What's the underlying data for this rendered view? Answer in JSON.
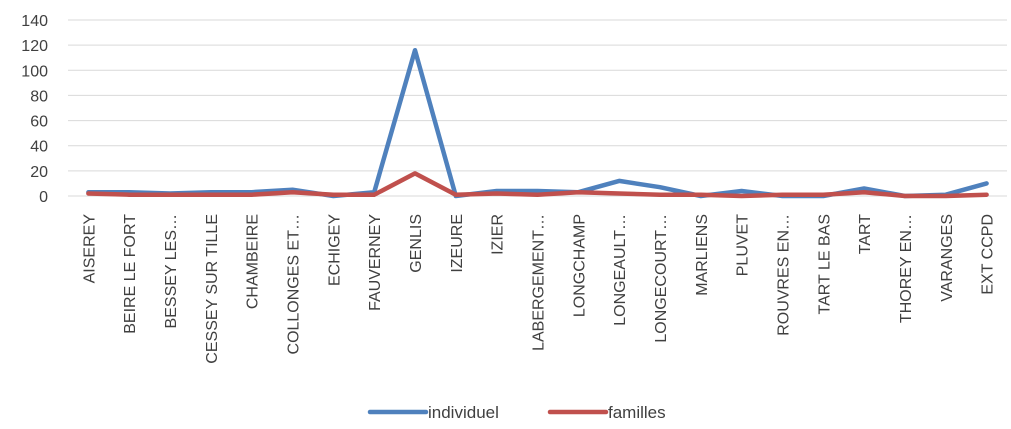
{
  "chart_data": {
    "type": "line",
    "title": "",
    "xlabel": "",
    "ylabel": "",
    "ylim": [
      0,
      140
    ],
    "yticks": [
      0,
      20,
      40,
      60,
      80,
      100,
      120,
      140
    ],
    "grid": true,
    "legend_position": "bottom",
    "categories": [
      "AISEREY",
      "BEIRE LE FORT",
      "BESSEY LES…",
      "CESSEY SUR TILLE",
      "CHAMBEIRE",
      "COLLONGES ET…",
      "ECHIGEY",
      "FAUVERNEY",
      "GENLIS",
      "IZEURE",
      "IZIER",
      "LABERGEMENT…",
      "LONGCHAMP",
      "LONGEAULT…",
      "LONGECOURT…",
      "MARLIENS",
      "PLUVET",
      "ROUVRES EN…",
      "TART LE BAS",
      "TART",
      "THOREY EN…",
      "VARANGES",
      "EXT CCPD"
    ],
    "series": [
      {
        "name": "individuel",
        "color": "#4F81BD",
        "values": [
          3,
          3,
          2,
          3,
          3,
          5,
          0,
          3,
          116,
          0,
          4,
          4,
          3,
          12,
          7,
          0,
          4,
          0,
          0,
          6,
          0,
          1,
          10
        ]
      },
      {
        "name": "familles",
        "color": "#C0504D",
        "values": [
          2,
          1,
          1,
          1,
          1,
          3,
          1,
          1,
          18,
          1,
          2,
          1,
          3,
          2,
          1,
          1,
          0,
          1,
          1,
          3,
          0,
          0,
          1
        ]
      }
    ]
  }
}
